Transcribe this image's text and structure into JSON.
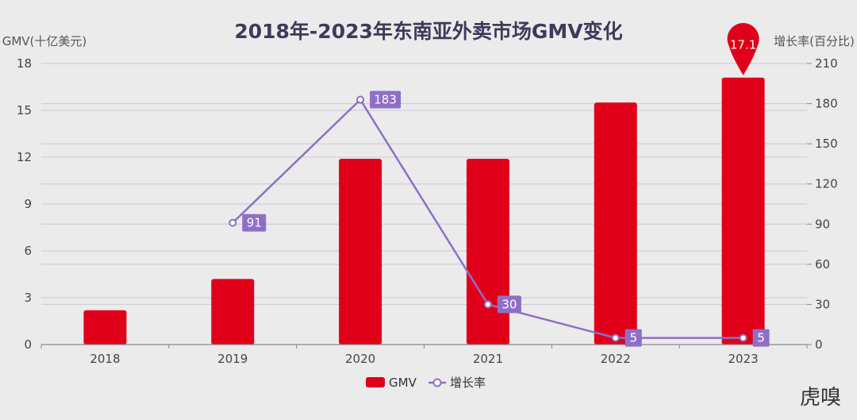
{
  "chart_data": {
    "type": "bar",
    "title": "2018年-2023年东南亚外卖市场GMV变化",
    "categories": [
      "2018",
      "2019",
      "2020",
      "2021",
      "2022",
      "2023"
    ],
    "series": [
      {
        "name": "GMV",
        "type": "bar",
        "axis": "left",
        "values": [
          2.2,
          4.2,
          11.9,
          11.9,
          15.5,
          17.1
        ]
      },
      {
        "name": "增长率",
        "type": "line",
        "axis": "right",
        "values": [
          null,
          91,
          183,
          30,
          5,
          5
        ]
      }
    ],
    "ylabel": "GMV(十亿美元)",
    "ylim": [
      0,
      18
    ],
    "yticks": [
      0,
      3,
      6,
      9,
      12,
      15,
      18
    ],
    "y2label": "增长率(百分比)",
    "y2lim": [
      0,
      210
    ],
    "y2ticks": [
      0,
      30,
      60,
      90,
      120,
      150,
      180,
      210
    ],
    "bar_labels": [
      {
        "index": 5,
        "text": "17.1"
      }
    ],
    "line_labels": [
      {
        "index": 1,
        "text": "91"
      },
      {
        "index": 2,
        "text": "183"
      },
      {
        "index": 3,
        "text": "30"
      },
      {
        "index": 4,
        "text": "5"
      },
      {
        "index": 5,
        "text": "5"
      }
    ],
    "legend": {
      "items": [
        "GMV",
        "增长率"
      ],
      "position": "bottom-center"
    }
  },
  "colors": {
    "bar": "#e1001a",
    "line": "#8f6fc6",
    "grid": "#c9c9d3",
    "axis": "#888888"
  },
  "watermark": {
    "text": "虎嗅"
  }
}
